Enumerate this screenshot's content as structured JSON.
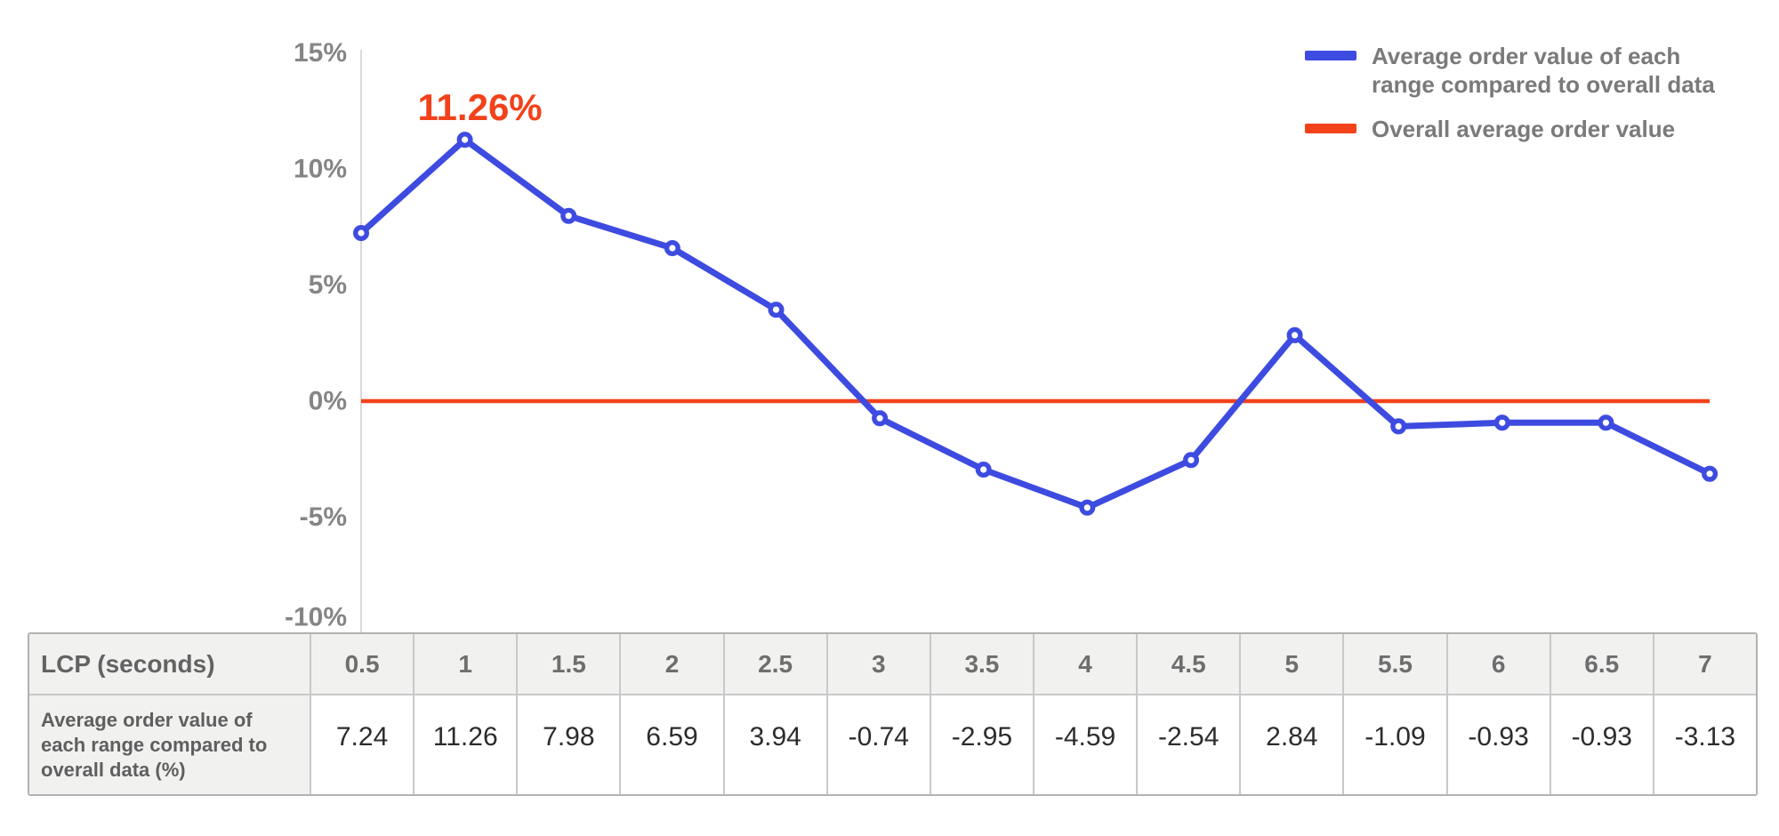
{
  "chart_data": {
    "type": "line",
    "title": "",
    "xlabel": "LCP (seconds)",
    "ylabel": "",
    "x_categories": [
      "0.5",
      "1",
      "1.5",
      "2",
      "2.5",
      "3",
      "3.5",
      "4",
      "4.5",
      "5",
      "5.5",
      "6",
      "6.5",
      "7"
    ],
    "ylim": [
      -10,
      15
    ],
    "yticks": [
      {
        "value": 15,
        "label": "15%"
      },
      {
        "value": 10,
        "label": "10%"
      },
      {
        "value": 5,
        "label": "5%"
      },
      {
        "value": 0,
        "label": "0%"
      },
      {
        "value": -5,
        "label": "-5%"
      },
      {
        "value": -10,
        "label": "-10%"
      }
    ],
    "grid": false,
    "legend_position": "top-right",
    "series": [
      {
        "name": "Average order value of each range compared to overall data",
        "type": "line",
        "color": "#3d4be0",
        "marker": "open-circle",
        "values": [
          7.24,
          11.26,
          7.98,
          6.59,
          3.94,
          -0.74,
          -2.95,
          -4.59,
          -2.54,
          2.84,
          -1.09,
          -0.93,
          -0.93,
          -3.13
        ]
      },
      {
        "name": "Overall average order value",
        "type": "hline",
        "color": "#f2421b",
        "value": 0
      }
    ],
    "annotation": {
      "text": "11.26%",
      "color": "#f2421b",
      "point_index": 1
    }
  },
  "table": {
    "corner_label": "LCP (seconds)",
    "row_label": "Average order value of each range compared to overall data (%)",
    "columns": [
      "0.5",
      "1",
      "1.5",
      "2",
      "2.5",
      "3",
      "3.5",
      "4",
      "4.5",
      "5",
      "5.5",
      "6",
      "6.5",
      "7"
    ],
    "values": [
      "7.24",
      "11.26",
      "7.98",
      "6.59",
      "3.94",
      "-0.74",
      "-2.95",
      "-4.59",
      "-2.54",
      "2.84",
      "-1.09",
      "-0.93",
      "-0.93",
      "-3.13"
    ]
  }
}
